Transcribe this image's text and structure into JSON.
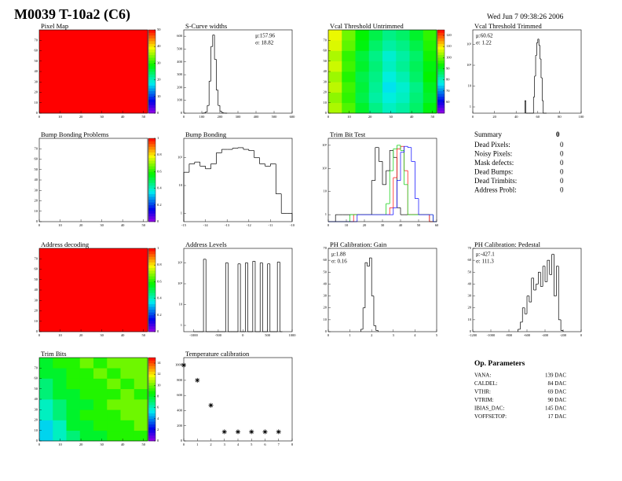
{
  "header": {
    "title": "M0039 T-10a2 (C6)",
    "date": "Wed Jun  7 09:38:26 2006"
  },
  "chart_data": [
    {
      "type": "heatmap",
      "title": "Pixel Map",
      "xlim": [
        0,
        52
      ],
      "ylim": [
        0,
        80
      ],
      "xticks": [
        0,
        10,
        20,
        30,
        40,
        50
      ],
      "yticks": [
        0,
        10,
        20,
        30,
        40,
        50,
        60,
        70
      ],
      "zlim": [
        0,
        50
      ],
      "zticks": [
        0,
        10,
        20,
        30,
        40,
        50
      ],
      "z": [
        [
          50,
          50,
          50,
          50
        ],
        [
          50,
          50,
          50,
          50
        ],
        [
          50,
          50,
          50,
          50
        ],
        [
          50,
          50,
          50,
          50
        ]
      ]
    },
    {
      "type": "histogram",
      "title": "S-Curve widths",
      "xlim": [
        0,
        600
      ],
      "ylim": [
        0,
        650
      ],
      "xticks": [
        0,
        100,
        200,
        300,
        400,
        500,
        600
      ],
      "yticks": [
        0,
        100,
        200,
        300,
        400,
        500,
        600
      ],
      "stats": [
        "μ:157.96",
        "σ: 18.82"
      ],
      "bins": [
        100,
        110,
        120,
        130,
        140,
        150,
        160,
        170,
        180,
        190,
        200,
        210,
        220,
        230,
        240
      ],
      "series": [
        {
          "color": "#000000",
          "values": [
            0,
            2,
            10,
            60,
            250,
            520,
            610,
            420,
            180,
            60,
            15,
            4,
            1,
            0
          ]
        }
      ]
    },
    {
      "type": "heatmap",
      "title": "Vcal Threshold Untrimmed",
      "xlim": [
        0,
        52
      ],
      "ylim": [
        0,
        80
      ],
      "xticks": [
        0,
        10,
        20,
        30,
        40,
        50
      ],
      "yticks": [
        0,
        10,
        20,
        30,
        40,
        50,
        60,
        70
      ],
      "zlim": [
        50,
        125
      ],
      "zticks": [
        60,
        70,
        80,
        90,
        100,
        110,
        120
      ],
      "z": [
        [
          104,
          98,
          90,
          84,
          80,
          82,
          86,
          92
        ],
        [
          102,
          96,
          88,
          82,
          78,
          80,
          85,
          90
        ],
        [
          105,
          97,
          89,
          83,
          76,
          79,
          84,
          91
        ],
        [
          103,
          95,
          88,
          84,
          78,
          81,
          86,
          93
        ],
        [
          106,
          97,
          90,
          85,
          80,
          83,
          87,
          92
        ],
        [
          104,
          96,
          89,
          84,
          79,
          82,
          86,
          94
        ],
        [
          107,
          99,
          92,
          86,
          82,
          84,
          88,
          95
        ],
        [
          108,
          100,
          93,
          88,
          84,
          86,
          90,
          96
        ]
      ]
    },
    {
      "type": "histogram",
      "title": "Vcal Threshold Trimmed",
      "xlim": [
        0,
        100
      ],
      "ylim": [
        0.5,
        5000
      ],
      "log_y": true,
      "xticks": [
        0,
        20,
        40,
        60,
        80,
        100
      ],
      "yticks": [
        1,
        10,
        {
          "value": 100,
          "label": "10²"
        },
        {
          "value": 1000,
          "label": "10³"
        }
      ],
      "stats": [
        "μ:60.62",
        "σ: 1.22"
      ],
      "bins": [
        48,
        49,
        50,
        51,
        52,
        53,
        54,
        55,
        56,
        57,
        58,
        59,
        60,
        61,
        62,
        63,
        64,
        65,
        66,
        67,
        68
      ],
      "series": [
        {
          "color": "#000000",
          "values": [
            2,
            0,
            0,
            0,
            0,
            0,
            0,
            0,
            3,
            30,
            300,
            1200,
            1800,
            900,
            200,
            25,
            2,
            0,
            0,
            0
          ]
        }
      ]
    },
    {
      "type": "heatmap",
      "title": "Bump Bonding Problems",
      "xlim": [
        0,
        52
      ],
      "ylim": [
        0,
        80
      ],
      "xticks": [
        0,
        10,
        20,
        30,
        40,
        50
      ],
      "yticks": [
        0,
        10,
        20,
        30,
        40,
        50,
        60,
        70
      ],
      "zlim": [
        0,
        1
      ],
      "zticks": [
        0,
        0.2,
        0.4,
        0.6,
        0.8,
        1
      ],
      "z": [
        [
          0,
          0,
          0,
          0
        ],
        [
          0,
          0,
          0,
          0
        ],
        [
          0,
          0,
          0,
          0
        ],
        [
          0,
          0,
          0,
          0
        ]
      ]
    },
    {
      "type": "histogram",
      "title": "Bump Bonding",
      "xlim": [
        -15,
        -10
      ],
      "ylim": [
        0.5,
        500
      ],
      "log_y": true,
      "xticks": [
        -15,
        -14,
        -13,
        -12,
        -11,
        -10
      ],
      "yticks": [
        1,
        10,
        {
          "value": 100,
          "label": "10²"
        }
      ],
      "bins": [
        -15,
        -14.75,
        -14.5,
        -14.25,
        -14,
        -13.75,
        -13.5,
        -13.25,
        -13,
        -12.75,
        -12.5,
        -12.25,
        -12,
        -11.75,
        -11.5,
        -11.25,
        -11,
        -10.75,
        -10.5,
        -10.25,
        -10
      ],
      "series": [
        {
          "color": "#000000",
          "values": [
            30,
            60,
            70,
            50,
            40,
            60,
            150,
            200,
            200,
            220,
            230,
            200,
            180,
            100,
            60,
            50,
            60,
            5,
            1,
            1
          ]
        }
      ]
    },
    {
      "type": "histogram",
      "title": "Trim Bit Test",
      "xlim": [
        0,
        60
      ],
      "ylim": [
        0.5,
        2000
      ],
      "log_y": true,
      "xticks": [
        0,
        10,
        20,
        30,
        40,
        50,
        60
      ],
      "yticks": [
        1,
        10,
        {
          "value": 100,
          "label": "10²"
        },
        {
          "value": 1000,
          "label": "10³"
        }
      ],
      "bins": [
        0,
        2,
        4,
        6,
        8,
        10,
        12,
        14,
        16,
        18,
        20,
        22,
        24,
        26,
        28,
        30,
        32,
        34,
        36,
        38,
        40,
        42,
        44,
        46,
        48,
        50,
        52,
        54,
        56,
        58,
        60
      ],
      "series": [
        {
          "color": "#000000",
          "values": [
            0,
            0,
            1,
            1,
            1,
            1,
            1,
            1,
            1,
            1,
            1,
            1,
            30,
            800,
            200,
            20,
            80,
            600,
            300,
            2,
            1,
            1,
            1,
            1,
            1,
            1,
            1,
            1,
            0,
            0
          ]
        },
        {
          "color": "#ff0000",
          "values": [
            0,
            0,
            0,
            0,
            0,
            0,
            0,
            1,
            1,
            1,
            1,
            1,
            1,
            1,
            1,
            1,
            1,
            2,
            40,
            700,
            900,
            80,
            1,
            1,
            1,
            1,
            1,
            1,
            0,
            0
          ]
        },
        {
          "color": "#00cc00",
          "values": [
            0,
            0,
            0,
            0,
            0,
            0,
            1,
            1,
            1,
            1,
            1,
            1,
            1,
            1,
            1,
            1,
            3,
            80,
            700,
            1000,
            600,
            20,
            1,
            1,
            1,
            1,
            1,
            1,
            1,
            0
          ]
        },
        {
          "color": "#0000ff",
          "values": [
            0,
            0,
            0,
            0,
            0,
            0,
            0,
            0,
            1,
            1,
            1,
            1,
            1,
            1,
            1,
            1,
            1,
            1,
            2,
            30,
            500,
            900,
            800,
            200,
            5,
            1,
            1,
            1,
            1,
            0
          ]
        }
      ]
    },
    {
      "type": "heatmap",
      "title": "Address decoding",
      "xlim": [
        0,
        52
      ],
      "ylim": [
        0,
        80
      ],
      "xticks": [
        0,
        10,
        20,
        30,
        40,
        50
      ],
      "yticks": [
        0,
        10,
        20,
        30,
        40,
        50,
        60,
        70
      ],
      "zlim": [
        0,
        1
      ],
      "zticks": [
        0,
        0.2,
        0.4,
        0.6,
        0.8,
        1
      ],
      "z": [
        [
          1,
          1,
          1,
          1
        ],
        [
          1,
          1,
          1,
          1
        ],
        [
          1,
          1,
          1,
          1
        ],
        [
          1,
          1,
          1,
          1
        ]
      ]
    },
    {
      "type": "histogram",
      "title": "Address Levels",
      "xlim": [
        -1200,
        1000
      ],
      "ylim": [
        0.5,
        5000
      ],
      "log_y": true,
      "xticks": [
        -1000,
        -500,
        0,
        500,
        1000
      ],
      "yticks": [
        1,
        10,
        {
          "value": 100,
          "label": "10²"
        },
        {
          "value": 1000,
          "label": "10³"
        }
      ],
      "bins": [
        -1000,
        -950,
        -900,
        -850,
        -800,
        -750,
        -700,
        -650,
        -600,
        -550,
        -500,
        -450,
        -400,
        -350,
        -300,
        -250,
        -200,
        -150,
        -100,
        -50,
        0,
        50,
        100,
        150,
        200,
        250,
        300,
        350,
        400,
        450,
        500,
        550,
        600,
        650,
        700,
        750,
        800
      ],
      "series": [
        {
          "color": "#000000",
          "values": [
            0,
            0,
            0,
            0,
            1500,
            0,
            0,
            0,
            0,
            0,
            0,
            0,
            0,
            1000,
            0,
            0,
            0,
            0,
            900,
            0,
            0,
            1000,
            0,
            0,
            1200,
            0,
            0,
            1000,
            0,
            0,
            900,
            0,
            0,
            0,
            1100,
            0
          ]
        }
      ]
    },
    {
      "type": "histogram",
      "title": "PH Calibration: Gain",
      "xlim": [
        0,
        5
      ],
      "ylim": [
        0,
        70
      ],
      "xticks": [
        0,
        1,
        2,
        3,
        4,
        5
      ],
      "yticks": [
        0,
        10,
        20,
        30,
        40,
        50,
        60,
        70
      ],
      "stats": [
        "μ:1.88",
        "σ: 0.16"
      ],
      "bins": [
        1.5,
        1.6,
        1.7,
        1.8,
        1.9,
        2,
        2.1,
        2.2,
        2.3
      ],
      "series": [
        {
          "color": "#000000",
          "values": [
            2,
            20,
            58,
            55,
            62,
            30,
            5,
            1
          ]
        }
      ]
    },
    {
      "type": "histogram",
      "title": "PH Calibration: Pedestal",
      "xlim": [
        -1200,
        0
      ],
      "ylim": [
        0,
        70
      ],
      "xticks": [
        -1200,
        -1000,
        -800,
        -600,
        -400,
        -200,
        0
      ],
      "yticks": [
        0,
        10,
        20,
        30,
        40,
        50,
        60,
        70
      ],
      "stats": [
        "μ:-427.1",
        "σ: 111.3"
      ],
      "bins": [
        -700,
        -675,
        -650,
        -625,
        -600,
        -575,
        -550,
        -525,
        -500,
        -475,
        -450,
        -425,
        -400,
        -375,
        -350,
        -325,
        -300,
        -275,
        -250,
        -225,
        -200
      ],
      "series": [
        {
          "color": "#000000",
          "values": [
            2,
            8,
            20,
            15,
            30,
            25,
            45,
            35,
            40,
            50,
            38,
            55,
            42,
            60,
            48,
            65,
            30,
            55,
            10,
            1
          ]
        }
      ]
    },
    {
      "type": "heatmap",
      "title": "Trim Bits",
      "xlim": [
        0,
        52
      ],
      "ylim": [
        0,
        80
      ],
      "xticks": [
        0,
        10,
        20,
        30,
        40,
        50
      ],
      "yticks": [
        0,
        10,
        20,
        30,
        40,
        50,
        60,
        70
      ],
      "zlim": [
        0,
        15
      ],
      "zticks": [
        0,
        2,
        4,
        6,
        8,
        10,
        12,
        14
      ],
      "z": [
        [
          5,
          6,
          7,
          8,
          8,
          9,
          9,
          9
        ],
        [
          5,
          6,
          8,
          8,
          9,
          9,
          9,
          10
        ],
        [
          6,
          7,
          8,
          9,
          9,
          9,
          10,
          10
        ],
        [
          6,
          7,
          8,
          8,
          9,
          10,
          10,
          10
        ],
        [
          7,
          8,
          8,
          9,
          9,
          9,
          10,
          9
        ],
        [
          7,
          8,
          9,
          9,
          9,
          10,
          9,
          10
        ],
        [
          8,
          8,
          9,
          9,
          10,
          9,
          10,
          10
        ],
        [
          8,
          9,
          9,
          10,
          9,
          10,
          10,
          10
        ]
      ]
    },
    {
      "type": "scatter",
      "title": "Temperature calibration",
      "xlim": [
        0,
        8
      ],
      "ylim": [
        0,
        1100
      ],
      "xticks": [
        0,
        1,
        2,
        3,
        4,
        5,
        6,
        7,
        8
      ],
      "yticks": [
        0,
        200,
        400,
        600,
        800,
        1000
      ],
      "x": [
        0,
        1,
        2,
        3,
        4,
        5,
        6,
        7
      ],
      "values": [
        1000,
        800,
        470,
        120,
        120,
        120,
        120,
        120
      ],
      "color": "#000000"
    }
  ],
  "summary": {
    "title": "Summary",
    "value": 0,
    "rows": [
      {
        "label": "Dead Pixels:",
        "value": 0
      },
      {
        "label": "Noisy Pixels:",
        "value": 0
      },
      {
        "label": "Mask defects:",
        "value": 0
      },
      {
        "label": "Dead Bumps:",
        "value": 0
      },
      {
        "label": "Dead Trimbits:",
        "value": 0
      },
      {
        "label": "Address Probl:",
        "value": 0
      }
    ]
  },
  "parameters": {
    "title": "Op. Parameters",
    "rows": [
      {
        "label": "VANA:",
        "value": "139 DAC"
      },
      {
        "label": "CALDEL:",
        "value": "84 DAC"
      },
      {
        "label": "VTHR:",
        "value": "69 DAC"
      },
      {
        "label": "VTRIM:",
        "value": "90 DAC"
      },
      {
        "label": "IBIAS_DAC:",
        "value": "145 DAC"
      },
      {
        "label": "VOFFSETOP:",
        "value": "17 DAC"
      }
    ]
  }
}
